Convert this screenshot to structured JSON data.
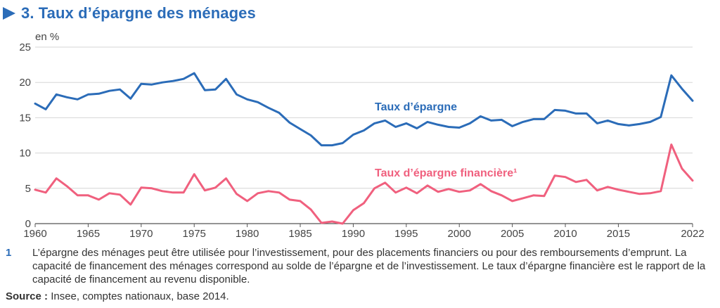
{
  "title": "3. Taux d’épargne des ménages",
  "chart_data": {
    "type": "line",
    "unit": "en %",
    "ylim": [
      0,
      25
    ],
    "yticks": [
      0,
      5,
      10,
      15,
      20,
      25
    ],
    "xlim": [
      1960,
      2022
    ],
    "xticks": [
      1960,
      1965,
      1970,
      1975,
      1980,
      1985,
      1990,
      1995,
      2000,
      2005,
      2010,
      2015,
      2022
    ],
    "grid": "horizontal",
    "x": [
      1960,
      1961,
      1962,
      1963,
      1964,
      1965,
      1966,
      1967,
      1968,
      1969,
      1970,
      1971,
      1972,
      1973,
      1974,
      1975,
      1976,
      1977,
      1978,
      1979,
      1980,
      1981,
      1982,
      1983,
      1984,
      1985,
      1986,
      1987,
      1988,
      1989,
      1990,
      1991,
      1992,
      1993,
      1994,
      1995,
      1996,
      1997,
      1998,
      1999,
      2000,
      2001,
      2002,
      2003,
      2004,
      2005,
      2006,
      2007,
      2008,
      2009,
      2010,
      2011,
      2012,
      2013,
      2014,
      2015,
      2016,
      2017,
      2018,
      2019,
      2020,
      2021,
      2022
    ],
    "series": [
      {
        "name": "Taux d’épargne",
        "color": "#2b6cb8",
        "values": [
          17.0,
          16.2,
          18.3,
          17.9,
          17.6,
          18.3,
          18.4,
          18.8,
          19.0,
          17.7,
          19.8,
          19.7,
          20.0,
          20.2,
          20.5,
          21.3,
          18.9,
          19.0,
          20.5,
          18.3,
          17.6,
          17.2,
          16.4,
          15.7,
          14.3,
          13.4,
          12.5,
          11.1,
          11.1,
          11.4,
          12.6,
          13.2,
          14.2,
          14.6,
          13.7,
          14.2,
          13.5,
          14.4,
          14.0,
          13.7,
          13.6,
          14.2,
          15.2,
          14.6,
          14.7,
          13.8,
          14.4,
          14.8,
          14.8,
          16.1,
          16.0,
          15.6,
          15.6,
          14.2,
          14.6,
          14.1,
          13.9,
          14.1,
          14.4,
          15.1,
          21.0,
          19.1,
          17.4
        ]
      },
      {
        "name": "Taux d’épargne financière¹",
        "color": "#f0607e",
        "values": [
          4.8,
          4.4,
          6.4,
          5.3,
          4.0,
          4.0,
          3.4,
          4.3,
          4.1,
          2.7,
          5.1,
          5.0,
          4.6,
          4.4,
          4.4,
          7.0,
          4.7,
          5.1,
          6.4,
          4.2,
          3.2,
          4.3,
          4.6,
          4.4,
          3.4,
          3.2,
          2.0,
          0.1,
          0.3,
          0.0,
          1.9,
          2.9,
          5.0,
          5.8,
          4.4,
          5.1,
          4.3,
          5.4,
          4.5,
          4.9,
          4.5,
          4.7,
          5.6,
          4.6,
          4.0,
          3.2,
          3.6,
          4.0,
          3.9,
          6.8,
          6.6,
          5.9,
          6.2,
          4.7,
          5.2,
          4.8,
          4.5,
          4.2,
          4.3,
          4.6,
          11.2,
          7.8,
          6.1
        ]
      }
    ]
  },
  "footnote": {
    "number": "1",
    "text": "L’épargne des ménages peut être utilisée pour l’investissement, pour des placements financiers ou pour des remboursements d’emprunt. La capacité de financement des ménages correspond au solde de l’épargne et de l’investissement. Le taux d’épargne financière est le rapport de la capacité de financement au revenu disponible."
  },
  "source": {
    "label": "Source :",
    "text": "Insee, comptes nationaux, base 2014."
  }
}
